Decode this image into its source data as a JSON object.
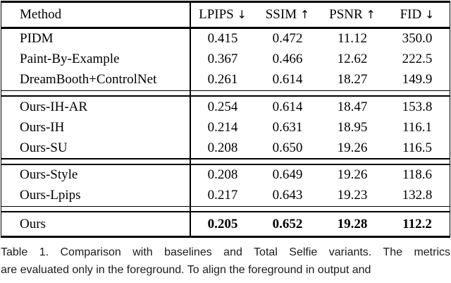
{
  "colors": {
    "background": "#ffffff",
    "table_text": "#000000",
    "rule": "#000000",
    "caption_text": "#1b1b1b"
  },
  "table": {
    "header": {
      "method": "Method",
      "metrics": [
        {
          "label": "LPIPS",
          "arrow": "↓"
        },
        {
          "label": "SSIM",
          "arrow": "↑"
        },
        {
          "label": "PSNR",
          "arrow": "↑"
        },
        {
          "label": "FID",
          "arrow": "↓"
        }
      ]
    },
    "sections": [
      {
        "name": "baselines",
        "rows": [
          {
            "method": "PIDM",
            "values": [
              "0.415",
              "0.472",
              "11.12",
              "350.0"
            ],
            "bold": false
          },
          {
            "method": "Paint-By-Example",
            "values": [
              "0.367",
              "0.466",
              "12.62",
              "222.5"
            ],
            "bold": false
          },
          {
            "method": "DreamBooth+ControlNet",
            "values": [
              "0.261",
              "0.614",
              "18.27",
              "149.9"
            ],
            "bold": false
          }
        ]
      },
      {
        "name": "variants-a",
        "rows": [
          {
            "method": "Ours-IH-AR",
            "values": [
              "0.254",
              "0.614",
              "18.47",
              "153.8"
            ],
            "bold": false
          },
          {
            "method": "Ours-IH",
            "values": [
              "0.214",
              "0.631",
              "18.95",
              "116.1"
            ],
            "bold": false
          },
          {
            "method": "Ours-SU",
            "values": [
              "0.208",
              "0.650",
              "19.26",
              "116.5"
            ],
            "bold": false
          }
        ]
      },
      {
        "name": "variants-b",
        "rows": [
          {
            "method": "Ours-Style",
            "values": [
              "0.208",
              "0.649",
              "19.26",
              "118.6"
            ],
            "bold": false
          },
          {
            "method": "Ours-Lpips",
            "values": [
              "0.217",
              "0.643",
              "19.23",
              "132.8"
            ],
            "bold": false
          }
        ]
      },
      {
        "name": "final",
        "rows": [
          {
            "method": "Ours",
            "values": [
              "0.205",
              "0.652",
              "19.28",
              "112.2"
            ],
            "bold": true
          }
        ]
      }
    ]
  },
  "caption": {
    "line1": "Table 1.  Comparison with baselines and Total Selfie variants. The metrics",
    "line2": "are evaluated only in the foreground. To align the foreground in output and"
  }
}
